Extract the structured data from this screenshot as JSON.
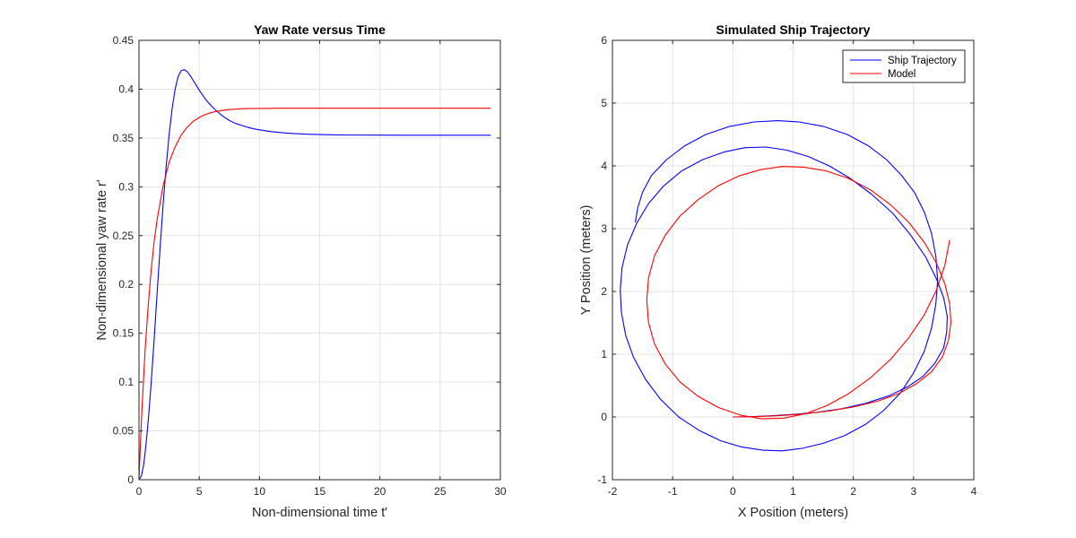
{
  "chart_data": [
    {
      "type": "line",
      "title": "Yaw Rate versus Time",
      "xlabel": "Non-dimensional time t'",
      "ylabel": "Non-dimensional yaw rate r'",
      "xlim": [
        0,
        30
      ],
      "ylim": [
        0,
        0.45
      ],
      "xticks": [
        0,
        5,
        10,
        15,
        20,
        25,
        30
      ],
      "xtick_labels": [
        "0",
        "5",
        "10",
        "15",
        "20",
        "25",
        "30"
      ],
      "yticks": [
        0,
        0.05,
        0.1,
        0.15,
        0.2,
        0.25,
        0.3,
        0.35,
        0.4,
        0.45
      ],
      "ytick_labels": [
        "0",
        "0.05",
        "0.1",
        "0.15",
        "0.2",
        "0.25",
        "0.3",
        "0.35",
        "0.4",
        "0.45"
      ],
      "grid": true,
      "legend": "none",
      "series": [
        {
          "color": "#0000ff",
          "x": [
            0,
            0.2,
            0.4,
            0.6,
            0.8,
            1,
            1.25,
            1.5,
            1.75,
            2,
            2.25,
            2.5,
            2.75,
            3,
            3.25,
            3.5,
            3.75,
            4,
            4.25,
            4.5,
            4.75,
            5,
            5.5,
            6,
            6.5,
            7,
            7.5,
            8,
            8.5,
            9,
            9.5,
            10,
            11,
            12,
            13,
            14,
            15,
            16,
            17,
            18,
            20,
            22,
            24,
            26,
            28,
            29.2
          ],
          "y": [
            0,
            0.004,
            0.016,
            0.038,
            0.065,
            0.097,
            0.142,
            0.19,
            0.237,
            0.281,
            0.32,
            0.353,
            0.38,
            0.4,
            0.413,
            0.419,
            0.42,
            0.418,
            0.414,
            0.409,
            0.404,
            0.399,
            0.39,
            0.383,
            0.377,
            0.372,
            0.368,
            0.365,
            0.363,
            0.361,
            0.3595,
            0.3583,
            0.3565,
            0.3552,
            0.3544,
            0.3539,
            0.3535,
            0.3533,
            0.3531,
            0.353,
            0.3529,
            0.3528,
            0.3528,
            0.3528,
            0.3528,
            0.3528
          ]
        },
        {
          "color": "#ff0000",
          "x": [
            0,
            0.1,
            0.25,
            0.5,
            0.75,
            1,
            1.25,
            1.5,
            2,
            2.5,
            3,
            3.5,
            4,
            4.5,
            5,
            5.5,
            6,
            6.5,
            7,
            7.5,
            8,
            9,
            10,
            11,
            12,
            14,
            16,
            18,
            20,
            22,
            24,
            26,
            28,
            29.2
          ],
          "y": [
            0,
            0.031,
            0.073,
            0.131,
            0.176,
            0.213,
            0.243,
            0.266,
            0.301,
            0.325,
            0.341,
            0.353,
            0.361,
            0.367,
            0.371,
            0.374,
            0.376,
            0.3774,
            0.3784,
            0.3791,
            0.3796,
            0.3801,
            0.3803,
            0.3804,
            0.3805,
            0.3805,
            0.3805,
            0.3805,
            0.3805,
            0.3805,
            0.3805,
            0.3805,
            0.3805,
            0.3805
          ]
        }
      ]
    },
    {
      "type": "line",
      "title": "Simulated Ship Trajectory",
      "xlabel": "X Position (meters)",
      "ylabel": "Y Position (meters)",
      "xlim": [
        -2,
        4
      ],
      "ylim": [
        -1,
        6
      ],
      "xticks": [
        -2,
        -1,
        0,
        1,
        2,
        3,
        4
      ],
      "xtick_labels": [
        "-2",
        "-1",
        "0",
        "1",
        "2",
        "3",
        "4"
      ],
      "yticks": [
        -1,
        0,
        1,
        2,
        3,
        4,
        5,
        6
      ],
      "ytick_labels": [
        "-1",
        "0",
        "1",
        "2",
        "3",
        "4",
        "5",
        "6"
      ],
      "grid": true,
      "legend": "top-right",
      "series": [
        {
          "name": "Ship Trajectory",
          "color": "#0000ff",
          "x": [
            0,
            0.3,
            0.6,
            1.0,
            1.4,
            1.8,
            2.2,
            2.6,
            2.9,
            3.15,
            3.35,
            3.5,
            3.55,
            3.56,
            3.5,
            3.38,
            3.2,
            2.95,
            2.65,
            2.3,
            1.95,
            1.6,
            1.25,
            0.9,
            0.55,
            0.2,
            -0.15,
            -0.5,
            -0.85,
            -1.15,
            -1.4,
            -1.6,
            -1.75,
            -1.84,
            -1.87,
            -1.85,
            -1.78,
            -1.65,
            -1.45,
            -1.2,
            -0.9,
            -0.55,
            -0.2,
            0.15,
            0.5,
            0.82,
            1.15,
            1.5,
            1.85,
            2.2,
            2.5,
            2.78,
            3.0,
            3.18,
            3.3,
            3.37,
            3.4,
            3.37,
            3.3,
            3.18,
            3.02,
            2.8,
            2.55,
            2.25,
            1.9,
            1.5,
            1.1,
            0.75,
            0.35,
            -0.05,
            -0.45,
            -0.8,
            -1.1,
            -1.35,
            -1.5,
            -1.58,
            -1.62
          ],
          "y": [
            0,
            0.005,
            0.018,
            0.04,
            0.075,
            0.13,
            0.215,
            0.34,
            0.48,
            0.64,
            0.85,
            1.1,
            1.35,
            1.6,
            1.9,
            2.2,
            2.55,
            2.9,
            3.25,
            3.55,
            3.8,
            4.0,
            4.15,
            4.25,
            4.3,
            4.29,
            4.22,
            4.1,
            3.92,
            3.68,
            3.4,
            3.08,
            2.74,
            2.38,
            2.02,
            1.66,
            1.3,
            0.95,
            0.6,
            0.28,
            0.0,
            -0.22,
            -0.38,
            -0.48,
            -0.53,
            -0.54,
            -0.5,
            -0.42,
            -0.3,
            -0.12,
            0.1,
            0.38,
            0.7,
            1.05,
            1.42,
            1.8,
            2.18,
            2.56,
            2.92,
            3.26,
            3.57,
            3.85,
            4.1,
            4.32,
            4.5,
            4.63,
            4.7,
            4.72,
            4.7,
            4.63,
            4.5,
            4.32,
            4.1,
            3.85,
            3.58,
            3.33,
            3.1
          ]
        },
        {
          "name": "Model",
          "color": "#ff0000",
          "x": [
            0,
            0.4,
            0.8,
            1.2,
            1.6,
            2.0,
            2.4,
            2.75,
            3.05,
            3.3,
            3.48,
            3.58,
            3.62,
            3.6,
            3.52,
            3.38,
            3.18,
            2.92,
            2.62,
            2.28,
            1.92,
            1.55,
            1.18,
            0.82,
            0.46,
            0.1,
            -0.25,
            -0.58,
            -0.88,
            -1.12,
            -1.3,
            -1.4,
            -1.43,
            -1.4,
            -1.3,
            -1.12,
            -0.88,
            -0.58,
            -0.24,
            0.12,
            0.48,
            0.84,
            1.2,
            1.56,
            1.92,
            2.28,
            2.62,
            2.92,
            3.18,
            3.38,
            3.52,
            3.6
          ],
          "y": [
            0,
            0.006,
            0.022,
            0.05,
            0.095,
            0.16,
            0.25,
            0.37,
            0.53,
            0.72,
            0.96,
            1.22,
            1.5,
            1.8,
            2.12,
            2.45,
            2.78,
            3.1,
            3.38,
            3.62,
            3.8,
            3.92,
            3.98,
            3.99,
            3.94,
            3.84,
            3.68,
            3.46,
            3.2,
            2.9,
            2.57,
            2.22,
            1.86,
            1.5,
            1.16,
            0.84,
            0.56,
            0.33,
            0.15,
            0.03,
            -0.03,
            -0.02,
            0.05,
            0.18,
            0.37,
            0.62,
            0.92,
            1.26,
            1.63,
            2.02,
            2.42,
            2.82
          ]
        }
      ]
    }
  ]
}
